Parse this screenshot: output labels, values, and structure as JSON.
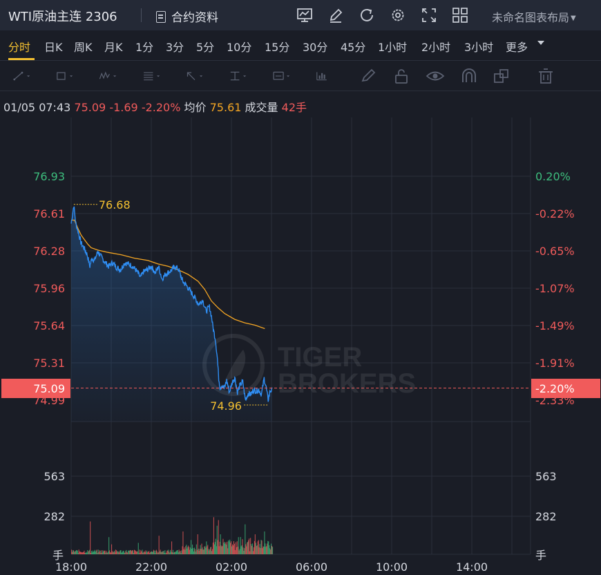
{
  "header": {
    "title": "WTI原油主连 2306",
    "contract_label": "合约资料",
    "layout_label": "未命名图表布局",
    "tool_icons": [
      "indicator-icon",
      "draw-pen-icon",
      "refresh-icon",
      "settings-icon",
      "fullscreen-icon",
      "grid-layout-icon"
    ]
  },
  "periods": {
    "items": [
      "分时",
      "日K",
      "周K",
      "月K",
      "1分",
      "3分",
      "5分",
      "10分",
      "15分",
      "30分",
      "45分",
      "1小时",
      "2小时",
      "3小时",
      "更多"
    ],
    "active": "分时"
  },
  "drawing_tools": [
    "trend-line-icon",
    "rectangle-icon",
    "wave-icon",
    "fib-icon",
    "arrow-icon",
    "text-tool-icon",
    "label-icon",
    "measure-icon",
    "brush-icon",
    "lock-icon",
    "eye-icon",
    "magnet-icon",
    "layers-icon",
    "trash-icon"
  ],
  "quote": {
    "time": "01/05 07:43",
    "price": "75.09",
    "change": "-1.69",
    "change_pct": "-2.20%",
    "avg_label": "均价",
    "avg_value": "75.61",
    "volume_label": "成交量",
    "volume_value": "42手"
  },
  "chart_data": {
    "type": "line",
    "x_ticks": [
      "18:00",
      "22:00",
      "02:00",
      "06:00",
      "10:00",
      "14:00"
    ],
    "price_ticks": [
      "76.93",
      "76.61",
      "76.28",
      "75.96",
      "75.64",
      "75.31",
      "74.99"
    ],
    "pct_ticks": [
      "0.20%",
      "-0.22%",
      "-0.65%",
      "-1.07%",
      "-1.49%",
      "-1.91%",
      "-2.33%"
    ],
    "current_price": "75.09",
    "current_pct": "-2.20%",
    "high_label": "76.68",
    "low_label": "74.96",
    "volume_ticks": [
      "563",
      "282"
    ],
    "volume_unit": "手",
    "watermark": "TIGER BROKERS",
    "series": [
      {
        "name": "price",
        "color": "#2f8ef4"
      },
      {
        "name": "average",
        "color": "#f5a623"
      }
    ],
    "colors": {
      "up": "#3dbd7d",
      "down": "#f15b5b",
      "highlow": "#f4c030",
      "grid": "#2a2f3b"
    }
  }
}
